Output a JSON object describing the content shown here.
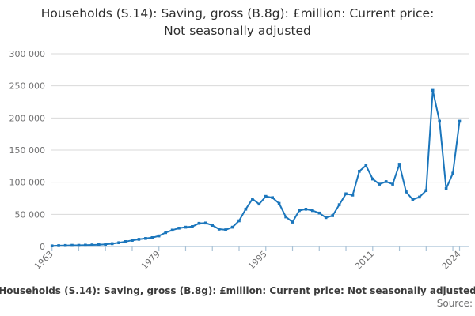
{
  "chart_data": {
    "type": "line",
    "title": "Households (S.14): Saving, gross (B.8g): £million: Current price: Not seasonally adjusted",
    "x": [
      1963,
      1964,
      1965,
      1966,
      1967,
      1968,
      1969,
      1970,
      1971,
      1972,
      1973,
      1974,
      1975,
      1976,
      1977,
      1978,
      1979,
      1980,
      1981,
      1982,
      1983,
      1984,
      1985,
      1986,
      1987,
      1988,
      1989,
      1990,
      1991,
      1992,
      1993,
      1994,
      1995,
      1996,
      1997,
      1998,
      1999,
      2000,
      2001,
      2002,
      2003,
      2004,
      2005,
      2006,
      2007,
      2008,
      2009,
      2010,
      2011,
      2012,
      2013,
      2014,
      2015,
      2016,
      2017,
      2018,
      2019,
      2020,
      2021,
      2022,
      2023,
      2024
    ],
    "series": [
      {
        "name": "Households (S.14): Saving, gross (B.8g): £million: Current price: Not seasonally adjusted",
        "values": [
          1000,
          1300,
          1600,
          1800,
          1900,
          2100,
          2400,
          2800,
          3400,
          4400,
          5900,
          7600,
          9600,
          11200,
          12600,
          13800,
          16500,
          21600,
          25500,
          28500,
          30000,
          31000,
          36000,
          36500,
          33000,
          27000,
          26000,
          30000,
          40000,
          58000,
          74000,
          66000,
          78000,
          76000,
          67000,
          46000,
          38000,
          56000,
          58000,
          56000,
          52000,
          45000,
          48000,
          65000,
          82000,
          80000,
          117000,
          126000,
          105000,
          97000,
          101000,
          97000,
          128000,
          85000,
          73000,
          77000,
          87000,
          243000,
          195000,
          90000,
          114000,
          195000
        ]
      }
    ],
    "ylim": [
      0,
      300000
    ],
    "yticks": [
      {
        "value": 0,
        "label": "0"
      },
      {
        "value": 50000,
        "label": "50 000"
      },
      {
        "value": 100000,
        "label": "100 000"
      },
      {
        "value": 150000,
        "label": "150 000"
      },
      {
        "value": 200000,
        "label": "200 000"
      },
      {
        "value": 250000,
        "label": "250 000"
      },
      {
        "value": 300000,
        "label": "300 000"
      }
    ],
    "xticks": [
      1963,
      1967,
      1971,
      1975,
      1979,
      1983,
      1987,
      1991,
      1995,
      1999,
      2003,
      2007,
      2011,
      2015,
      2019,
      2023,
      2024
    ],
    "xtick_labels": [
      {
        "year": 1963,
        "label": "1963"
      },
      {
        "year": 1979,
        "label": "1979"
      },
      {
        "year": 1995,
        "label": "1995"
      },
      {
        "year": 2011,
        "label": "2011"
      },
      {
        "year": 2024,
        "label": "2024"
      }
    ],
    "grid": "horizontal",
    "legend_position": "none",
    "marker": "square",
    "colors": {
      "line": "#1b76bc",
      "grid": "#d9d9d9",
      "axis": "#a9c2d6",
      "tick_text": "#707071",
      "title_text": "#2e2e2e"
    }
  },
  "footer": {
    "series_label": "Households (S.14): Saving, gross (B.8g): £million: Current price: Not seasonally adjusted",
    "source_label": "Source:"
  }
}
